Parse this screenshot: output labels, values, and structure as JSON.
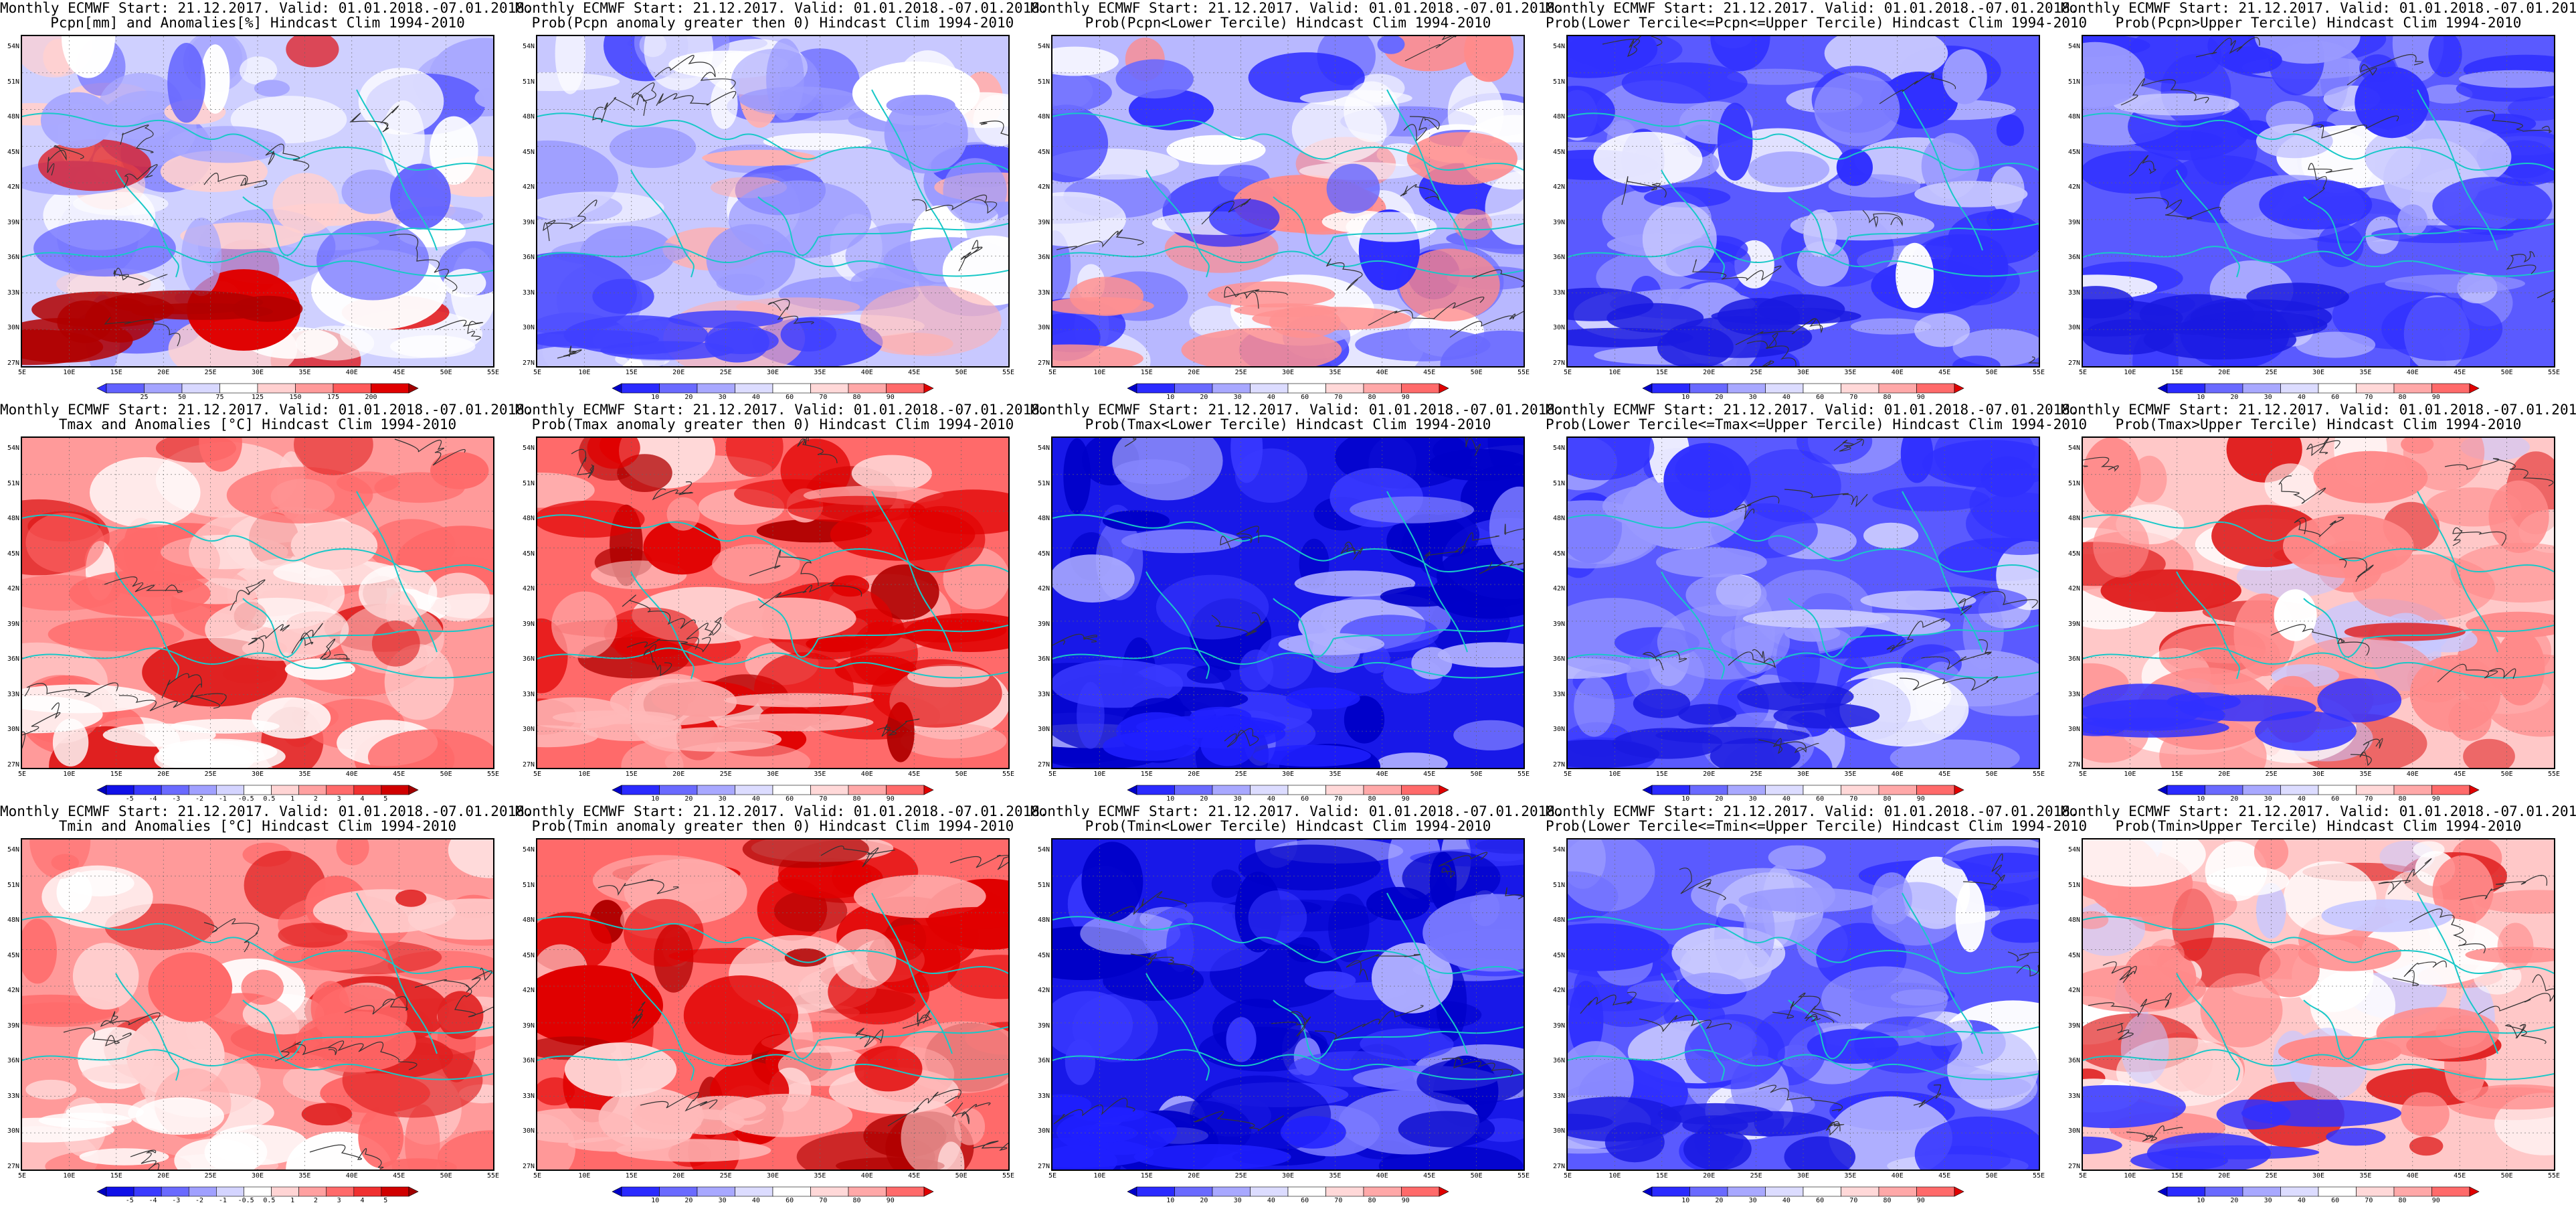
{
  "header_common": "Monthly ECMWF Start: 21.12.2017. Valid: 01.01.2018.-07.01.2018.",
  "x_ticks": [
    "5E",
    "10E",
    "15E",
    "20E",
    "25E",
    "30E",
    "35E",
    "40E",
    "45E",
    "50E",
    "55E"
  ],
  "y_ticks": [
    "54N",
    "51N",
    "48N",
    "45N",
    "42N",
    "39N",
    "36N",
    "33N",
    "30N",
    "27N"
  ],
  "colorbars": {
    "pcpn_anom": {
      "labels": [
        "25",
        "50",
        "75",
        "125",
        "150",
        "175",
        "200"
      ],
      "colors": [
        "#3232ff",
        "#6262ff",
        "#a4a4ff",
        "#d8d8ff",
        "#ffffff",
        "#ffd0d0",
        "#ff9a9a",
        "#ff5a5a",
        "#e00000",
        "#a00000"
      ]
    },
    "temp_anom": {
      "labels": [
        "-5",
        "-4",
        "-3",
        "-2",
        "-1",
        "-0.5",
        "0.5",
        "1",
        "2",
        "3",
        "4",
        "5"
      ],
      "colors": [
        "#0000c0",
        "#1010e8",
        "#3a3aff",
        "#6a6aff",
        "#a0a0ff",
        "#d4d4ff",
        "#ffffff",
        "#ffd4d4",
        "#ffa0a0",
        "#ff6a6a",
        "#f03030",
        "#d00000",
        "#a00000"
      ]
    },
    "prob": {
      "labels": [
        "10",
        "20",
        "30",
        "40",
        "60",
        "70",
        "80",
        "90"
      ],
      "colors": [
        "#0000c8",
        "#2a2aff",
        "#6a6aff",
        "#a8a8ff",
        "#dcdcff",
        "#ffffff",
        "#ffd8d8",
        "#ffa8a8",
        "#ff6a6a",
        "#e00000"
      ]
    }
  },
  "panels": [
    {
      "id": "pcpn-anom",
      "line2": "Pcpn[mm] and Anomalies[%] Hindcast Clim 1994-2010",
      "cbar": "pcpn_anom",
      "scheme": "pcpn"
    },
    {
      "id": "pcpn-prob-pos",
      "line2": "Prob(Pcpn anomaly greater then 0) Hindcast Clim 1994-2010",
      "cbar": "prob",
      "scheme": "mixblue"
    },
    {
      "id": "pcpn-prob-lower",
      "line2": "Prob(Pcpn<Lower Tercile) Hindcast Clim 1994-2010",
      "cbar": "prob",
      "scheme": "mixblue2"
    },
    {
      "id": "pcpn-prob-middle",
      "line2": "Prob(Lower Tercile<=Pcpn<=Upper Tercile) Hindcast Clim 1994-2010",
      "cbar": "prob",
      "scheme": "blue"
    },
    {
      "id": "pcpn-prob-upper",
      "line2": "Prob(Pcpn>Upper Tercile) Hindcast Clim 1994-2010",
      "cbar": "prob",
      "scheme": "blue"
    },
    {
      "id": "tmax-anom",
      "line2": "Tmax and Anomalies [°C] Hindcast Clim 1994-2010",
      "cbar": "temp_anom",
      "scheme": "red"
    },
    {
      "id": "tmax-prob-pos",
      "line2": "Prob(Tmax anomaly greater then 0) Hindcast Clim 1994-2010",
      "cbar": "prob",
      "scheme": "darkred"
    },
    {
      "id": "tmax-prob-lower",
      "line2": "Prob(Tmax<Lower Tercile) Hindcast Clim 1994-2010",
      "cbar": "prob",
      "scheme": "deepblue"
    },
    {
      "id": "tmax-prob-middle",
      "line2": "Prob(Lower Tercile<=Tmax<=Upper Tercile) Hindcast Clim 1994-2010",
      "cbar": "prob",
      "scheme": "blue"
    },
    {
      "id": "tmax-prob-upper",
      "line2": "Prob(Tmax>Upper Tercile) Hindcast Clim 1994-2010",
      "cbar": "prob",
      "scheme": "redblue"
    },
    {
      "id": "tmin-anom",
      "line2": "Tmin and Anomalies [°C] Hindcast Clim 1994-2010",
      "cbar": "temp_anom",
      "scheme": "red"
    },
    {
      "id": "tmin-prob-pos",
      "line2": "Prob(Tmin anomaly greater then 0) Hindcast Clim 1994-2010",
      "cbar": "prob",
      "scheme": "darkred"
    },
    {
      "id": "tmin-prob-lower",
      "line2": "Prob(Tmin<Lower Tercile) Hindcast Clim 1994-2010",
      "cbar": "prob",
      "scheme": "deepblue"
    },
    {
      "id": "tmin-prob-middle",
      "line2": "Prob(Lower Tercile<=Tmin<=Upper Tercile) Hindcast Clim 1994-2010",
      "cbar": "prob",
      "scheme": "blue"
    },
    {
      "id": "tmin-prob-upper",
      "line2": "Prob(Tmin>Upper Tercile) Hindcast Clim 1994-2010",
      "cbar": "prob",
      "scheme": "redblue"
    }
  ]
}
